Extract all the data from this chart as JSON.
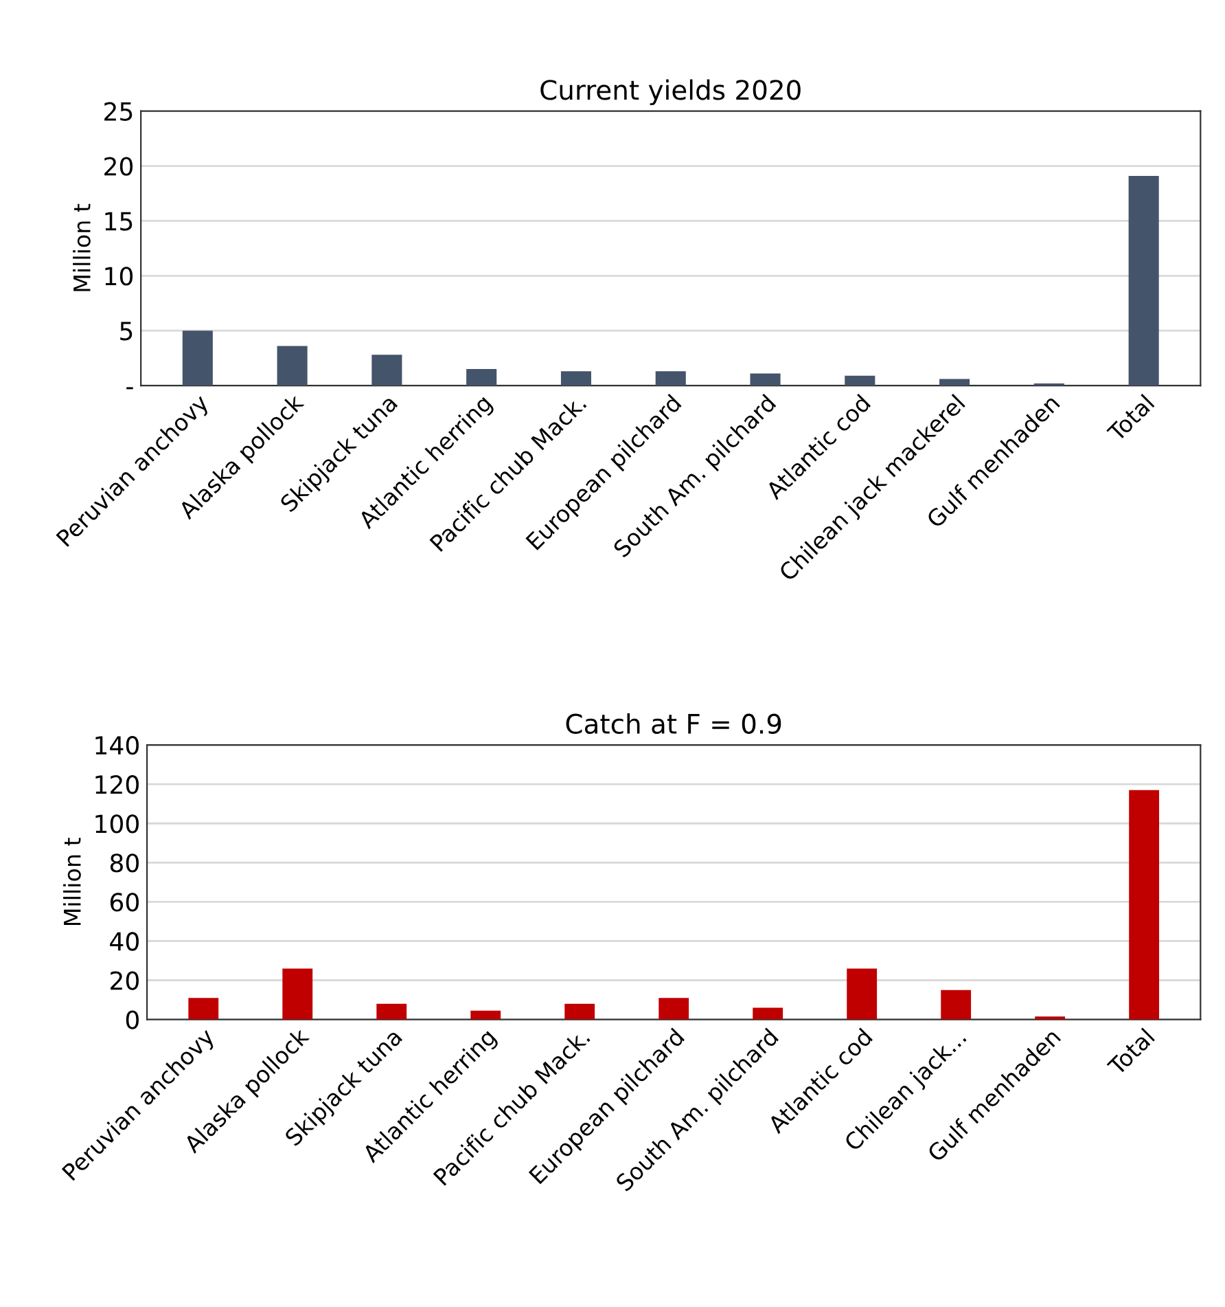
{
  "chart_data": [
    {
      "type": "bar",
      "title": "Current yields 2020",
      "ylabel": "Million t",
      "categories": [
        "Peruvian anchovy",
        "Alaska pollock",
        "Skipjack tuna",
        "Atlantic herring",
        "Pacific chub Mack.",
        "European pilchard",
        "South Am. pilchard",
        "Atlantic cod",
        "Chilean jack mackerel",
        "Gulf menhaden",
        "Total"
      ],
      "series": [
        {
          "color": "#44546a",
          "values": [
            5.0,
            3.6,
            2.8,
            1.5,
            1.3,
            1.3,
            1.1,
            0.9,
            0.6,
            0.2,
            19.1
          ]
        }
      ],
      "ylim": [
        0,
        25
      ],
      "yticks": [
        {
          "value": 0,
          "label": "-"
        },
        5,
        10,
        15,
        20,
        25
      ],
      "grid": "y"
    },
    {
      "type": "bar",
      "title": "Catch at F = 0.9",
      "ylabel": "Million t",
      "categories": [
        "Peruvian anchovy",
        "Alaska pollock",
        "Skipjack tuna",
        "Atlantic herring",
        "Pacific chub Mack.",
        "European pilchard",
        "South Am. pilchard",
        "Atlantic cod",
        "Chilean jack...",
        "Gulf menhaden",
        "Total"
      ],
      "series": [
        {
          "color": "#c00000",
          "values": [
            11,
            26,
            8,
            4.5,
            8,
            11,
            6,
            26,
            15,
            1.5,
            117
          ]
        }
      ],
      "ylim": [
        0,
        140
      ],
      "yticks": [
        0,
        20,
        40,
        60,
        80,
        100,
        120,
        140
      ],
      "grid": "y"
    }
  ]
}
